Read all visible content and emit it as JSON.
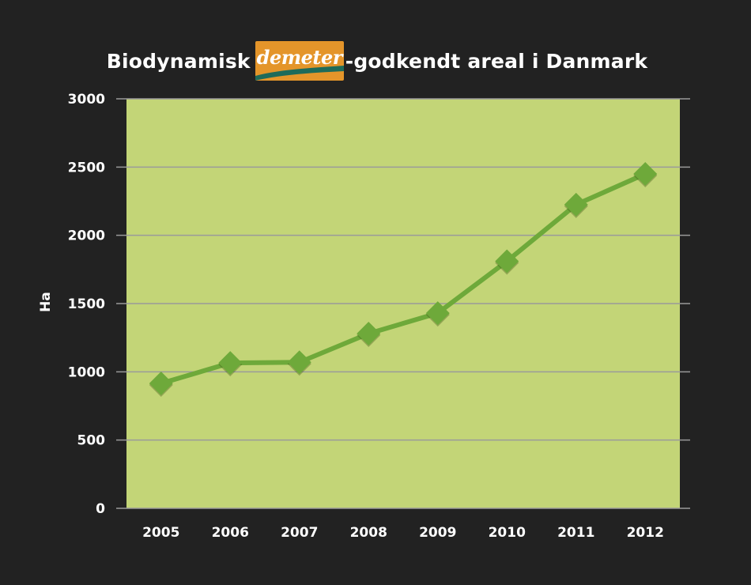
{
  "title": {
    "prefix": "Biodynamisk",
    "logo_text": "demeter",
    "suffix": "-godkendt areal i Danmark"
  },
  "colors": {
    "background": "#222222",
    "plot_area": "#c3d577",
    "line": "#6ea93a",
    "marker": "#6ea93a",
    "gridline": "#9a9a9a",
    "logo_bg": "#e4952a",
    "logo_swoosh": "#1e6b5a"
  },
  "chart_data": {
    "type": "line",
    "title": "",
    "xlabel": "",
    "ylabel": "Ha",
    "ylim": [
      0,
      3000
    ],
    "yticks": [
      0,
      500,
      1000,
      1500,
      2000,
      2500,
      3000
    ],
    "grid": true,
    "legend": "none",
    "categories": [
      "2005",
      "2006",
      "2007",
      "2008",
      "2009",
      "2010",
      "2011",
      "2012"
    ],
    "series": [
      {
        "marker": "diamond",
        "values": [
          915,
          1065,
          1070,
          1280,
          1430,
          1810,
          2225,
          2450
        ]
      }
    ]
  }
}
